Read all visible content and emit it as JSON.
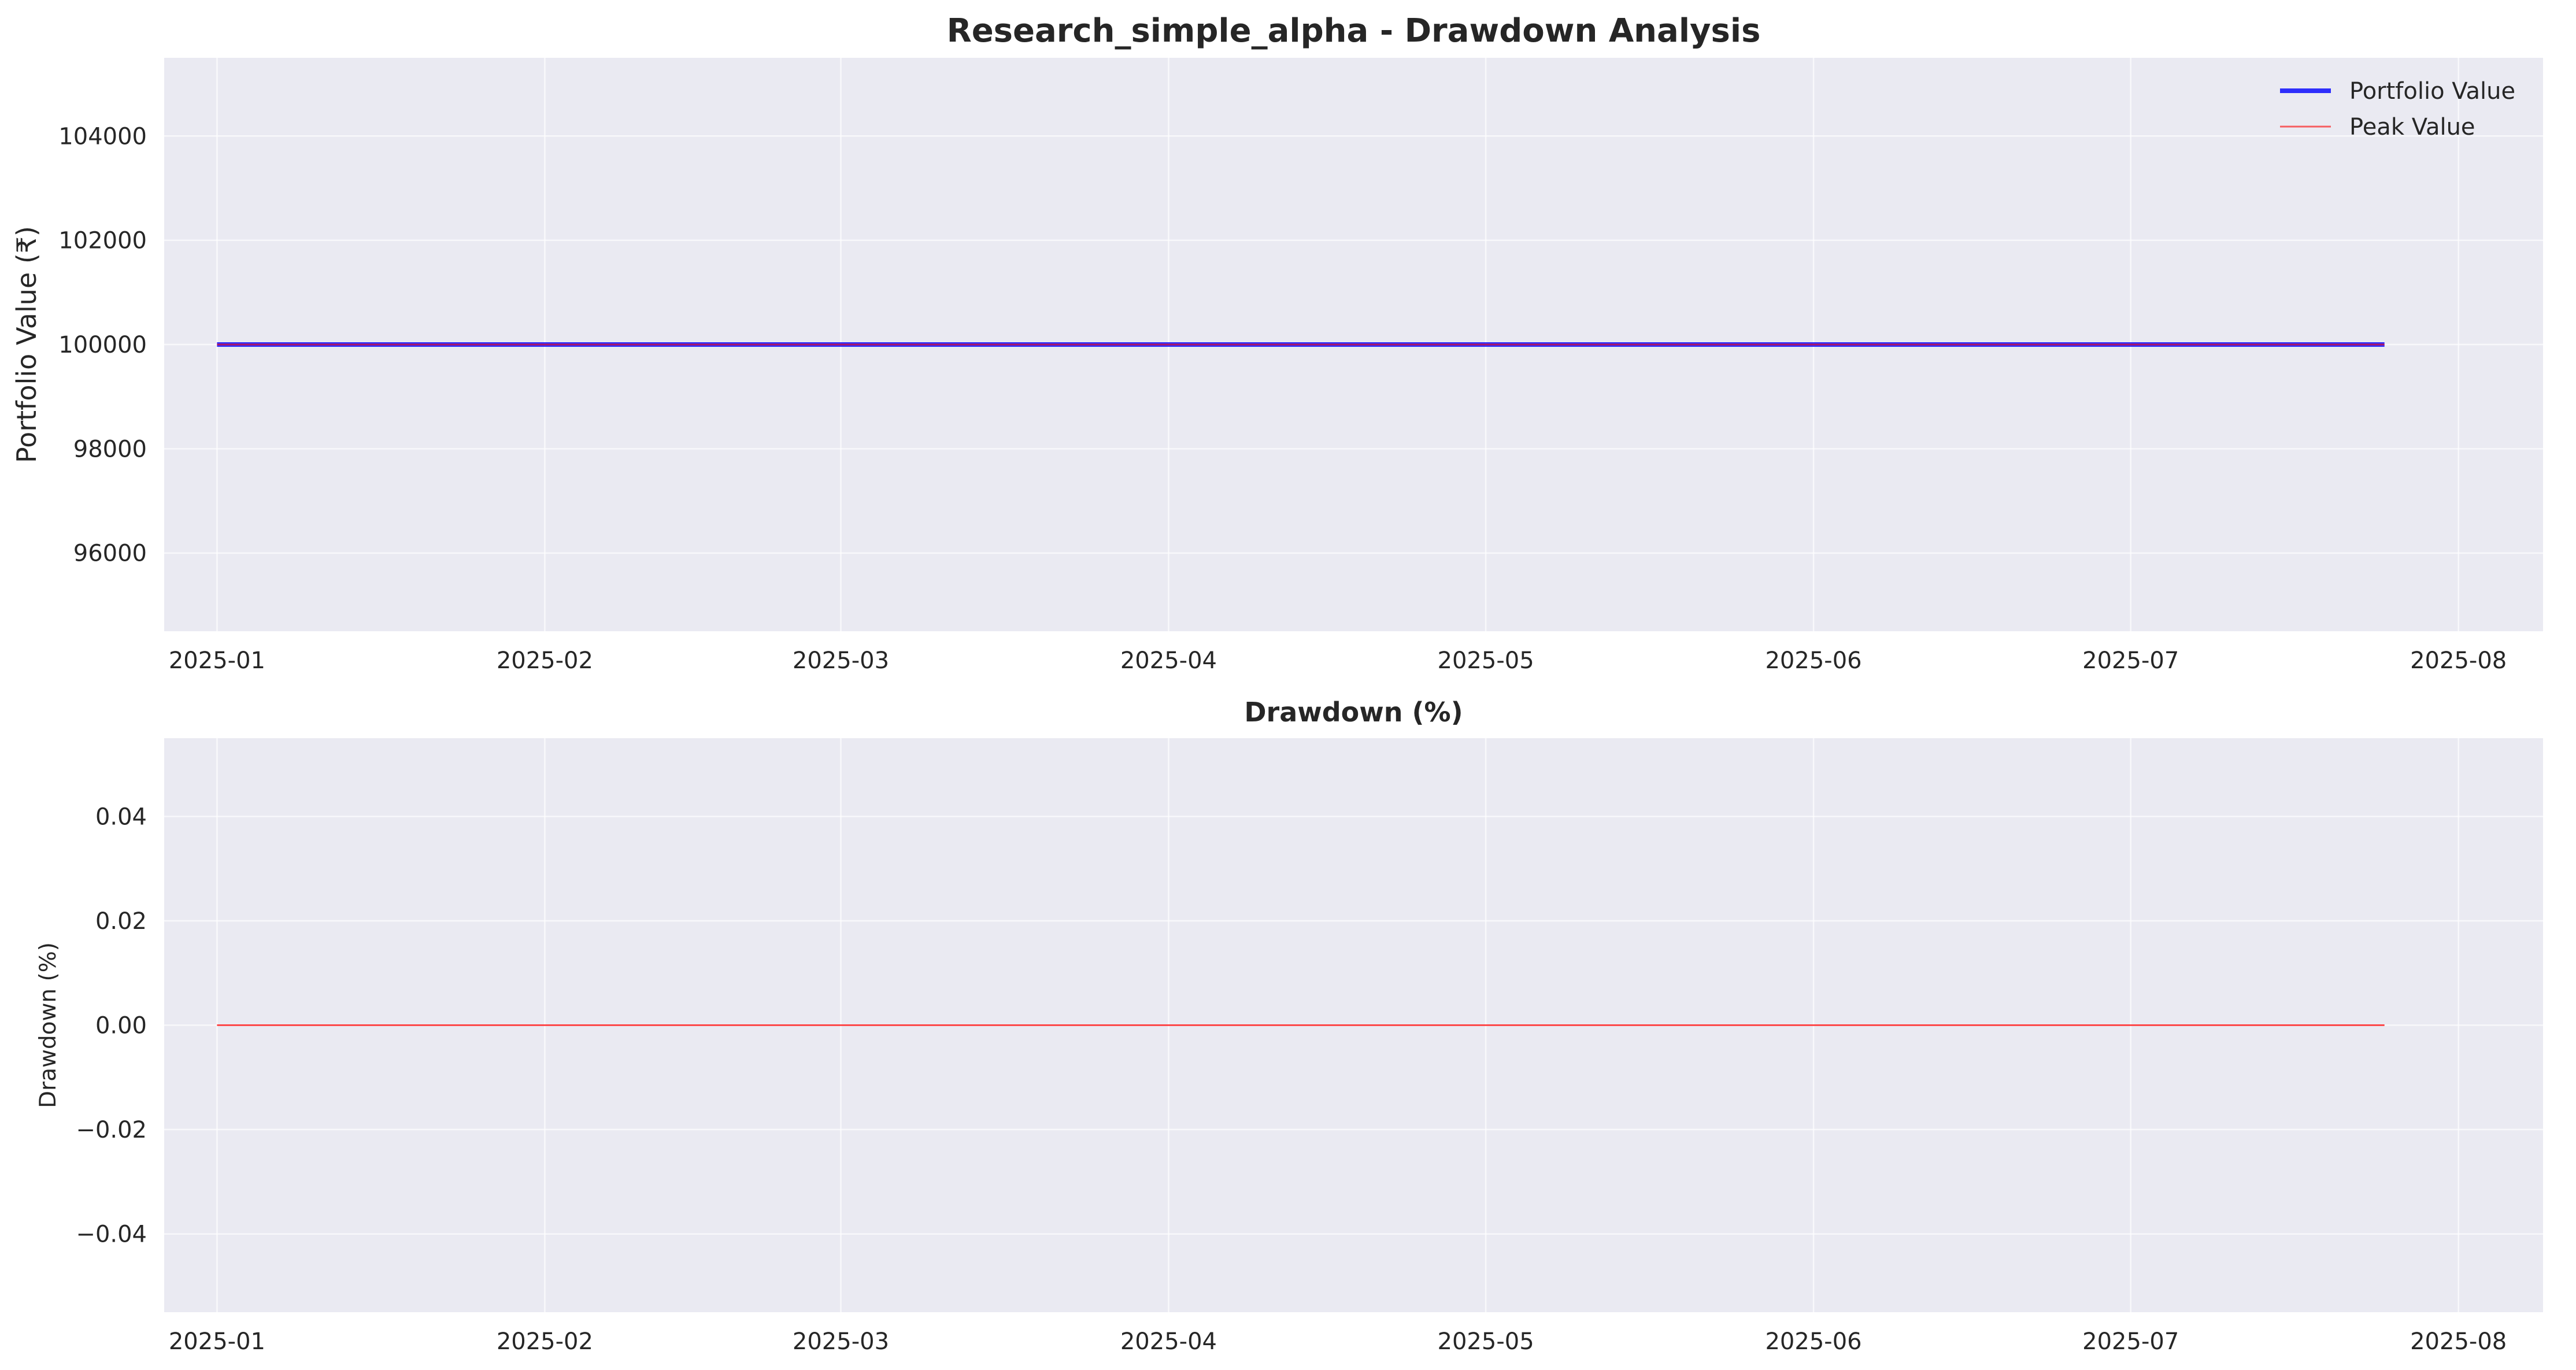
{
  "chart_data": [
    {
      "type": "line",
      "title": "Research_simple_alpha - Drawdown Analysis",
      "xlabel": "",
      "ylabel": "Portfolio Value (₹)",
      "x_ticks": [
        "2025-01",
        "2025-02",
        "2025-03",
        "2025-04",
        "2025-05",
        "2025-06",
        "2025-07",
        "2025-08"
      ],
      "y_ticks": [
        "96000",
        "98000",
        "100000",
        "102000",
        "104000"
      ],
      "xlim": [
        "2024-12-27",
        "2025-08-09"
      ],
      "ylim": [
        94500,
        105500
      ],
      "grid": true,
      "legend": "top-right",
      "series": [
        {
          "name": "Portfolio Value",
          "color": "#0000ff",
          "x": [
            "2025-01-01",
            "2025-07-25"
          ],
          "values": [
            100000,
            100000
          ]
        },
        {
          "name": "Peak Value",
          "color": "#ff0000",
          "x": [
            "2025-01-01",
            "2025-07-25"
          ],
          "values": [
            100000,
            100000
          ]
        }
      ]
    },
    {
      "type": "line",
      "title": "Drawdown (%)",
      "xlabel": "",
      "ylabel": "Drawdown (%)",
      "x_ticks": [
        "2025-01",
        "2025-02",
        "2025-03",
        "2025-04",
        "2025-05",
        "2025-06",
        "2025-07",
        "2025-08"
      ],
      "y_ticks": [
        "−0.04",
        "−0.02",
        "0.00",
        "0.02",
        "0.04"
      ],
      "xlim": [
        "2024-12-27",
        "2025-08-09"
      ],
      "ylim": [
        -0.055,
        0.055
      ],
      "grid": true,
      "series": [
        {
          "color": "#ff0000",
          "x": [
            "2025-01-01",
            "2025-07-25"
          ],
          "values": [
            0,
            0
          ]
        }
      ]
    }
  ]
}
